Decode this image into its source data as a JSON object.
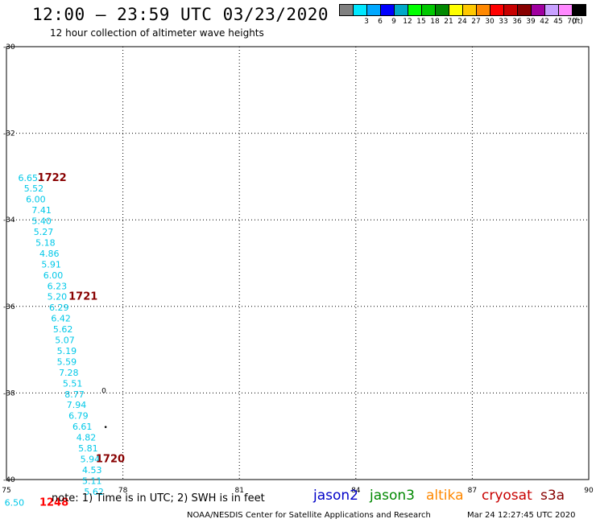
{
  "header": {
    "title": "12:00 – 23:59 UTC 03/23/2020",
    "subtitle": "12 hour collection of altimeter wave heights"
  },
  "color_scale": {
    "unit": "(ft)",
    "boxes": [
      {
        "color": "#808080",
        "label": ""
      },
      {
        "color": "#00e8ff",
        "label": "3"
      },
      {
        "color": "#00a8ff",
        "label": "6"
      },
      {
        "color": "#0000ff",
        "label": "9"
      },
      {
        "color": "#00a8c8",
        "label": "12"
      },
      {
        "color": "#00ff00",
        "label": "15"
      },
      {
        "color": "#00c800",
        "label": "18"
      },
      {
        "color": "#008800",
        "label": "21"
      },
      {
        "color": "#ffff00",
        "label": "24"
      },
      {
        "color": "#ffc800",
        "label": "27"
      },
      {
        "color": "#ff8800",
        "label": "30"
      },
      {
        "color": "#ff0000",
        "label": "33"
      },
      {
        "color": "#c80000",
        "label": "36"
      },
      {
        "color": "#880000",
        "label": "39"
      },
      {
        "color": "#a000a0",
        "label": "42"
      },
      {
        "color": "#c8a0ff",
        "label": "45"
      },
      {
        "color": "#ff88ff",
        "label": "70"
      },
      {
        "color": "#000000",
        "label": ""
      }
    ]
  },
  "map": {
    "lon_ticks": [
      "75",
      "78",
      "81",
      "84",
      "87",
      "90"
    ],
    "lat_ticks": [
      "-30",
      "-32",
      "-34",
      "-36",
      "-38",
      "-40"
    ],
    "track_color": "#00c8e8",
    "observations": [
      {
        "lon": 75.3,
        "lat": -33.1,
        "swh": "6.65"
      },
      {
        "lon": 75.45,
        "lat": -33.35,
        "swh": "5.52"
      },
      {
        "lon": 75.5,
        "lat": -33.6,
        "swh": "6.00"
      },
      {
        "lon": 75.65,
        "lat": -33.85,
        "swh": "7.41"
      },
      {
        "lon": 75.65,
        "lat": -34.1,
        "swh": "5.40"
      },
      {
        "lon": 75.7,
        "lat": -34.35,
        "swh": "5.27"
      },
      {
        "lon": 75.75,
        "lat": -34.6,
        "swh": "5.18"
      },
      {
        "lon": 75.85,
        "lat": -34.85,
        "swh": "4.86"
      },
      {
        "lon": 75.9,
        "lat": -35.1,
        "swh": "5.91"
      },
      {
        "lon": 75.95,
        "lat": -35.35,
        "swh": "6.00"
      },
      {
        "lon": 76.05,
        "lat": -35.6,
        "swh": "6.23"
      },
      {
        "lon": 76.05,
        "lat": -35.85,
        "swh": "5.20"
      },
      {
        "lon": 76.1,
        "lat": -36.1,
        "swh": "6.29"
      },
      {
        "lon": 76.15,
        "lat": -36.35,
        "swh": "6.42"
      },
      {
        "lon": 76.2,
        "lat": -36.6,
        "swh": "5.62"
      },
      {
        "lon": 76.25,
        "lat": -36.85,
        "swh": "5.07"
      },
      {
        "lon": 76.3,
        "lat": -37.1,
        "swh": "5.19"
      },
      {
        "lon": 76.3,
        "lat": -37.35,
        "swh": "5.59"
      },
      {
        "lon": 76.35,
        "lat": -37.6,
        "swh": "7.28"
      },
      {
        "lon": 76.45,
        "lat": -37.85,
        "swh": "5.51"
      },
      {
        "lon": 76.5,
        "lat": -38.1,
        "swh": "8.77"
      },
      {
        "lon": 76.55,
        "lat": -38.35,
        "swh": "7.94"
      },
      {
        "lon": 76.6,
        "lat": -38.6,
        "swh": "6.79"
      },
      {
        "lon": 76.7,
        "lat": -38.85,
        "swh": "6.61"
      },
      {
        "lon": 76.8,
        "lat": -39.1,
        "swh": "4.82"
      },
      {
        "lon": 76.85,
        "lat": -39.35,
        "swh": "5.81"
      },
      {
        "lon": 76.9,
        "lat": -39.6,
        "swh": "5.94"
      },
      {
        "lon": 76.95,
        "lat": -39.85,
        "swh": "4.53"
      },
      {
        "lon": 76.95,
        "lat": -40.1,
        "swh": "5.11"
      },
      {
        "lon": 77.0,
        "lat": -40.35,
        "swh": "5.62"
      },
      {
        "lon": 74.95,
        "lat": -40.6,
        "swh": "6.50"
      }
    ],
    "time_labels": [
      {
        "lon": 75.8,
        "lat": -33.1,
        "text": "1722",
        "color": "#880000"
      },
      {
        "lon": 76.6,
        "lat": -35.85,
        "text": "1721",
        "color": "#880000"
      },
      {
        "lon": 77.3,
        "lat": -39.6,
        "text": "1720",
        "color": "#880000"
      },
      {
        "lon": 75.85,
        "lat": -40.6,
        "text": "1248",
        "color": "#ff0000"
      }
    ],
    "markers": [
      {
        "lon": 77.45,
        "lat": -38.0,
        "text": "0"
      },
      {
        "lon": 77.5,
        "lat": -38.85,
        "text": "•"
      }
    ]
  },
  "footer": {
    "note": "note: 1) Time is in UTC; 2) SWH is in feet",
    "satellites": [
      {
        "name": "jason2",
        "color": "#0000c8"
      },
      {
        "name": "jason3",
        "color": "#008800"
      },
      {
        "name": "altika",
        "color": "#ff8800"
      },
      {
        "name": "cryosat",
        "color": "#c80000"
      },
      {
        "name": "s3a",
        "color": "#880000"
      }
    ],
    "credit": "NOAA/NESDIS Center for Satellite Applications and Research",
    "generated": "Mar 24 12:27:45 UTC 2020"
  }
}
